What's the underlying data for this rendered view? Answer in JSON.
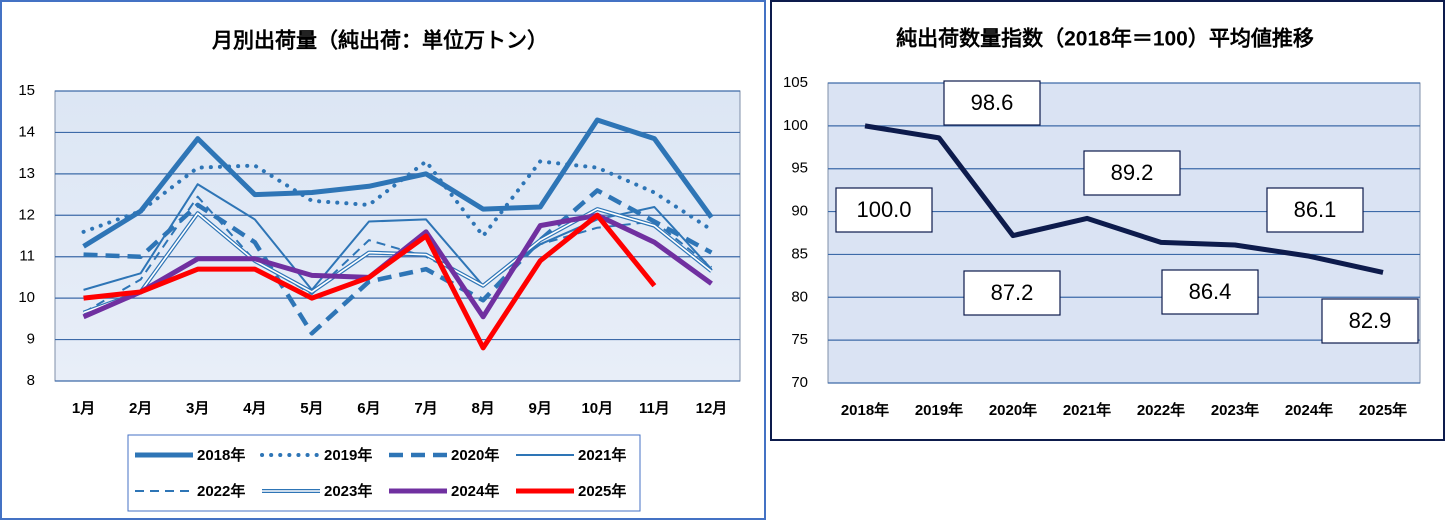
{
  "chart_data": [
    {
      "type": "line",
      "title": "月別出荷量（純出荷：単位万トン）",
      "categories": [
        "1月",
        "2月",
        "3月",
        "4月",
        "5月",
        "6月",
        "7月",
        "8月",
        "9月",
        "10月",
        "11月",
        "12月"
      ],
      "ylim": [
        8,
        15
      ],
      "yticks": [
        8,
        9,
        10,
        11,
        12,
        13,
        14,
        15
      ],
      "grid": true,
      "legend": "bottom",
      "series": [
        {
          "name": "2018年",
          "color": "#2e75b6",
          "line_style": "thick",
          "values": [
            11.25,
            12.1,
            13.85,
            12.5,
            12.55,
            12.7,
            13.0,
            12.15,
            12.2,
            14.3,
            13.85,
            11.95
          ]
        },
        {
          "name": "2019年",
          "color": "#2e75b6",
          "line_style": "dotted",
          "values": [
            11.6,
            12.1,
            13.15,
            13.2,
            12.35,
            12.25,
            13.3,
            11.5,
            13.3,
            13.15,
            12.55,
            11.65
          ]
        },
        {
          "name": "2020年",
          "color": "#2e75b6",
          "line_style": "thick-dashed",
          "values": [
            11.05,
            11.0,
            12.25,
            11.35,
            9.15,
            10.4,
            10.7,
            9.95,
            11.4,
            12.6,
            11.85,
            11.1
          ]
        },
        {
          "name": "2021年",
          "color": "#2e75b6",
          "line_style": "thin",
          "values": [
            10.2,
            10.6,
            12.75,
            11.9,
            10.2,
            11.85,
            11.9,
            10.3,
            11.3,
            11.9,
            12.2,
            10.7
          ]
        },
        {
          "name": "2022年",
          "color": "#2e75b6",
          "line_style": "thin-dashed",
          "values": [
            9.65,
            10.45,
            12.45,
            10.9,
            10.1,
            11.4,
            11.0,
            10.3,
            11.3,
            11.7,
            11.85,
            10.75
          ]
        },
        {
          "name": "2023年",
          "color": "#2e75b6",
          "line_style": "double",
          "values": [
            9.65,
            10.15,
            12.05,
            10.9,
            10.15,
            11.1,
            11.05,
            10.3,
            11.4,
            12.15,
            11.75,
            10.65
          ]
        },
        {
          "name": "2024年",
          "color": "#7030a0",
          "line_style": "thick",
          "values": [
            9.55,
            10.15,
            10.95,
            10.95,
            10.55,
            10.5,
            11.6,
            9.55,
            11.75,
            12.0,
            11.35,
            10.35
          ]
        },
        {
          "name": "2025年",
          "color": "#ff0000",
          "line_style": "thick",
          "values": [
            10.0,
            10.15,
            10.7,
            10.7,
            10.0,
            10.5,
            11.5,
            8.8,
            10.9,
            12.0,
            10.3,
            null
          ]
        }
      ]
    },
    {
      "type": "line",
      "title": "純出荷数量指数（2018年＝100）平均値推移",
      "categories": [
        "2018年",
        "2019年",
        "2020年",
        "2021年",
        "2022年",
        "2023年",
        "2024年",
        "2025年"
      ],
      "ylim": [
        70,
        105
      ],
      "yticks": [
        70,
        75,
        80,
        85,
        90,
        95,
        100,
        105
      ],
      "grid": true,
      "series": [
        {
          "color": "#0d1b4c",
          "line_style": "thick",
          "values": [
            100.0,
            98.6,
            87.2,
            89.2,
            86.4,
            86.1,
            84.8,
            82.9
          ],
          "value_labels": [
            "100.0",
            "98.6",
            "87.2",
            "89.2",
            "86.4",
            "86.1",
            null,
            "82.9"
          ]
        }
      ]
    }
  ]
}
